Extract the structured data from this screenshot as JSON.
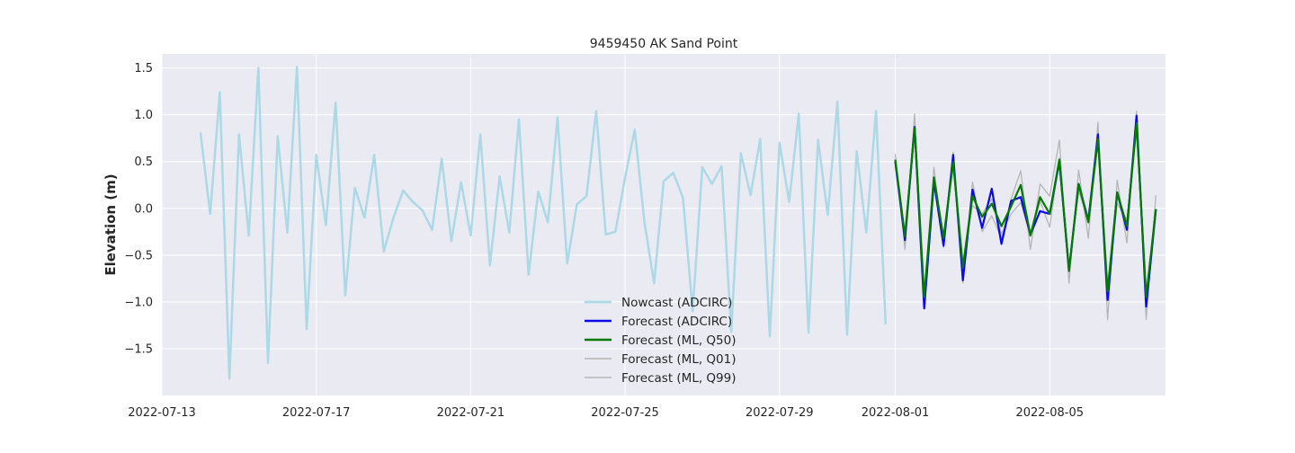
{
  "chart_data": {
    "type": "line",
    "title": "9459450 AK Sand Point",
    "xlabel": "",
    "ylabel": "Elevation (m)",
    "xlim": [
      "2022-07-13T00:00",
      "2022-08-08T00:00"
    ],
    "ylim": [
      -2.0,
      1.65
    ],
    "x_ticks": [
      "2022-07-13",
      "2022-07-17",
      "2022-07-21",
      "2022-07-25",
      "2022-07-29",
      "2022-08-01",
      "2022-08-05"
    ],
    "y_ticks": [
      -1.5,
      -1.0,
      -0.5,
      0.0,
      0.5,
      1.0,
      1.5
    ],
    "y_tick_labels": [
      "−1.5",
      "−1.0",
      "−0.5",
      "0.0",
      "0.5",
      "1.0",
      "1.5"
    ],
    "grid": true,
    "legend_placement": "lower-center",
    "series": [
      {
        "name": "Nowcast (ADCIRC)",
        "color": "#add8e6",
        "width": 2.5,
        "start": "2022-07-14T00:00",
        "step_hours": 6,
        "values": [
          0.81,
          -0.06,
          1.24,
          -1.82,
          0.79,
          -0.29,
          1.5,
          -1.65,
          0.77,
          -0.26,
          1.51,
          -1.29,
          0.57,
          -0.18,
          1.13,
          -0.93,
          0.22,
          -0.1,
          0.57,
          -0.46,
          -0.1,
          0.19,
          0.07,
          -0.02,
          -0.23,
          0.53,
          -0.35,
          0.28,
          -0.29,
          0.79,
          -0.61,
          0.34,
          -0.26,
          0.95,
          -0.71,
          0.18,
          -0.15,
          0.97,
          -0.59,
          0.04,
          0.13,
          1.04,
          -0.28,
          -0.25,
          0.33,
          0.84,
          -0.14,
          -0.8,
          0.29,
          0.38,
          0.11,
          -1.1,
          0.44,
          0.26,
          0.45,
          -1.32,
          0.59,
          0.14,
          0.74,
          -1.37,
          0.7,
          0.07,
          1.01,
          -1.33,
          0.73,
          -0.07,
          1.14,
          -1.35,
          0.61,
          -0.26,
          1.04,
          -1.24
        ]
      },
      {
        "name": "Forecast (ML, Q01)",
        "color": "#b5b5b5",
        "width": 1.3,
        "start": "2022-08-01T00:00",
        "step_hours": 6,
        "values": [
          0.58,
          -0.44,
          1.01,
          -1.07,
          0.44,
          -0.42,
          0.6,
          -0.8,
          0.28,
          -0.25,
          -0.08,
          -0.32,
          0.1,
          0.4,
          -0.44,
          0.26,
          0.13,
          0.73,
          -0.8,
          0.41,
          -0.32,
          0.92,
          -1.19,
          0.3,
          -0.37,
          1.04,
          -1.19,
          0.14
        ]
      },
      {
        "name": "Forecast (ML, Q99)",
        "color": "#b5b5b5",
        "width": 1.3,
        "start": "2022-08-01T00:00",
        "step_hours": 6,
        "values": [
          0.46,
          -0.31,
          0.82,
          -0.91,
          0.24,
          -0.28,
          0.43,
          -0.6,
          0.03,
          -0.06,
          0.1,
          -0.27,
          -0.06,
          0.06,
          -0.3,
          0.08,
          -0.2,
          0.54,
          -0.62,
          0.18,
          -0.12,
          0.7,
          -0.87,
          0.05,
          -0.12,
          0.82,
          -0.94,
          -0.06
        ]
      },
      {
        "name": "Forecast (ADCIRC)",
        "color": "#0a0ae6",
        "width": 2.2,
        "start": "2022-08-01T00:00",
        "step_hours": 6,
        "values": [
          0.5,
          -0.34,
          0.87,
          -1.07,
          0.29,
          -0.4,
          0.57,
          -0.77,
          0.2,
          -0.21,
          0.21,
          -0.38,
          0.08,
          0.12,
          -0.28,
          -0.03,
          -0.06,
          0.5,
          -0.66,
          0.26,
          -0.13,
          0.79,
          -0.98,
          0.17,
          -0.23,
          0.99,
          -1.05,
          -0.01
        ]
      },
      {
        "name": "Forecast (ML, Q50)",
        "color": "#007a00",
        "width": 2.2,
        "start": "2022-08-01T00:00",
        "step_hours": 6,
        "values": [
          0.52,
          -0.3,
          0.86,
          -0.95,
          0.33,
          -0.32,
          0.5,
          -0.63,
          0.13,
          -0.09,
          0.05,
          -0.19,
          0.02,
          0.25,
          -0.29,
          0.12,
          -0.06,
          0.52,
          -0.67,
          0.26,
          -0.15,
          0.74,
          -0.89,
          0.17,
          -0.19,
          0.91,
          -0.95,
          -0.01
        ]
      }
    ],
    "legend_order": [
      "Nowcast (ADCIRC)",
      "Forecast (ADCIRC)",
      "Forecast (ML, Q50)",
      "Forecast (ML, Q01)",
      "Forecast (ML, Q99)"
    ]
  }
}
